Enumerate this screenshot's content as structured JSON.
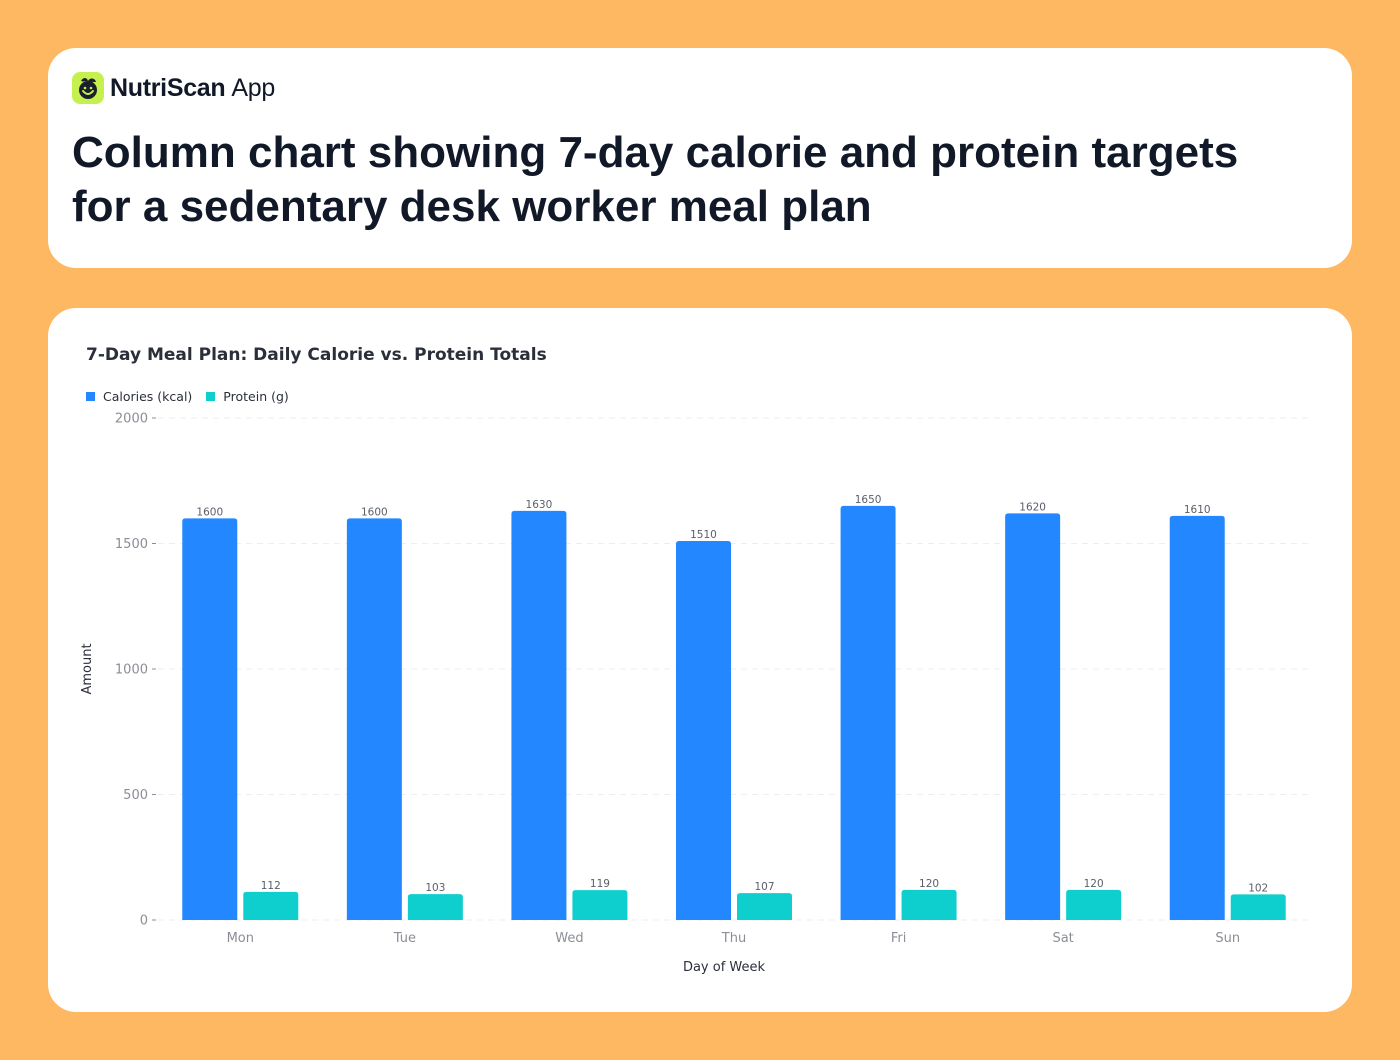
{
  "brand": {
    "name_bold": "NutriScan",
    "name_light": "App",
    "icon": "leaf-smile-icon",
    "accent": "#C6F04E"
  },
  "headline": "Column chart showing 7-day calorie and protein targets for a sedentary desk worker meal plan",
  "colors": {
    "background": "#FFB862",
    "calories": "#2388FF",
    "protein": "#0ECECE"
  },
  "chart_data": {
    "type": "bar",
    "title": "7-Day Meal Plan: Daily Calorie vs. Protein Totals",
    "xlabel": "Day of Week",
    "ylabel": "Amount",
    "ylim": [
      0,
      2000
    ],
    "yticks": [
      0,
      500,
      1000,
      1500,
      2000
    ],
    "grid": true,
    "legend_position": "top-left",
    "categories": [
      "Mon",
      "Tue",
      "Wed",
      "Thu",
      "Fri",
      "Sat",
      "Sun"
    ],
    "series": [
      {
        "name": "Calories (kcal)",
        "values": [
          1600,
          1600,
          1630,
          1510,
          1650,
          1620,
          1610
        ]
      },
      {
        "name": "Protein (g)",
        "values": [
          112,
          103,
          119,
          107,
          120,
          120,
          102
        ]
      }
    ]
  }
}
